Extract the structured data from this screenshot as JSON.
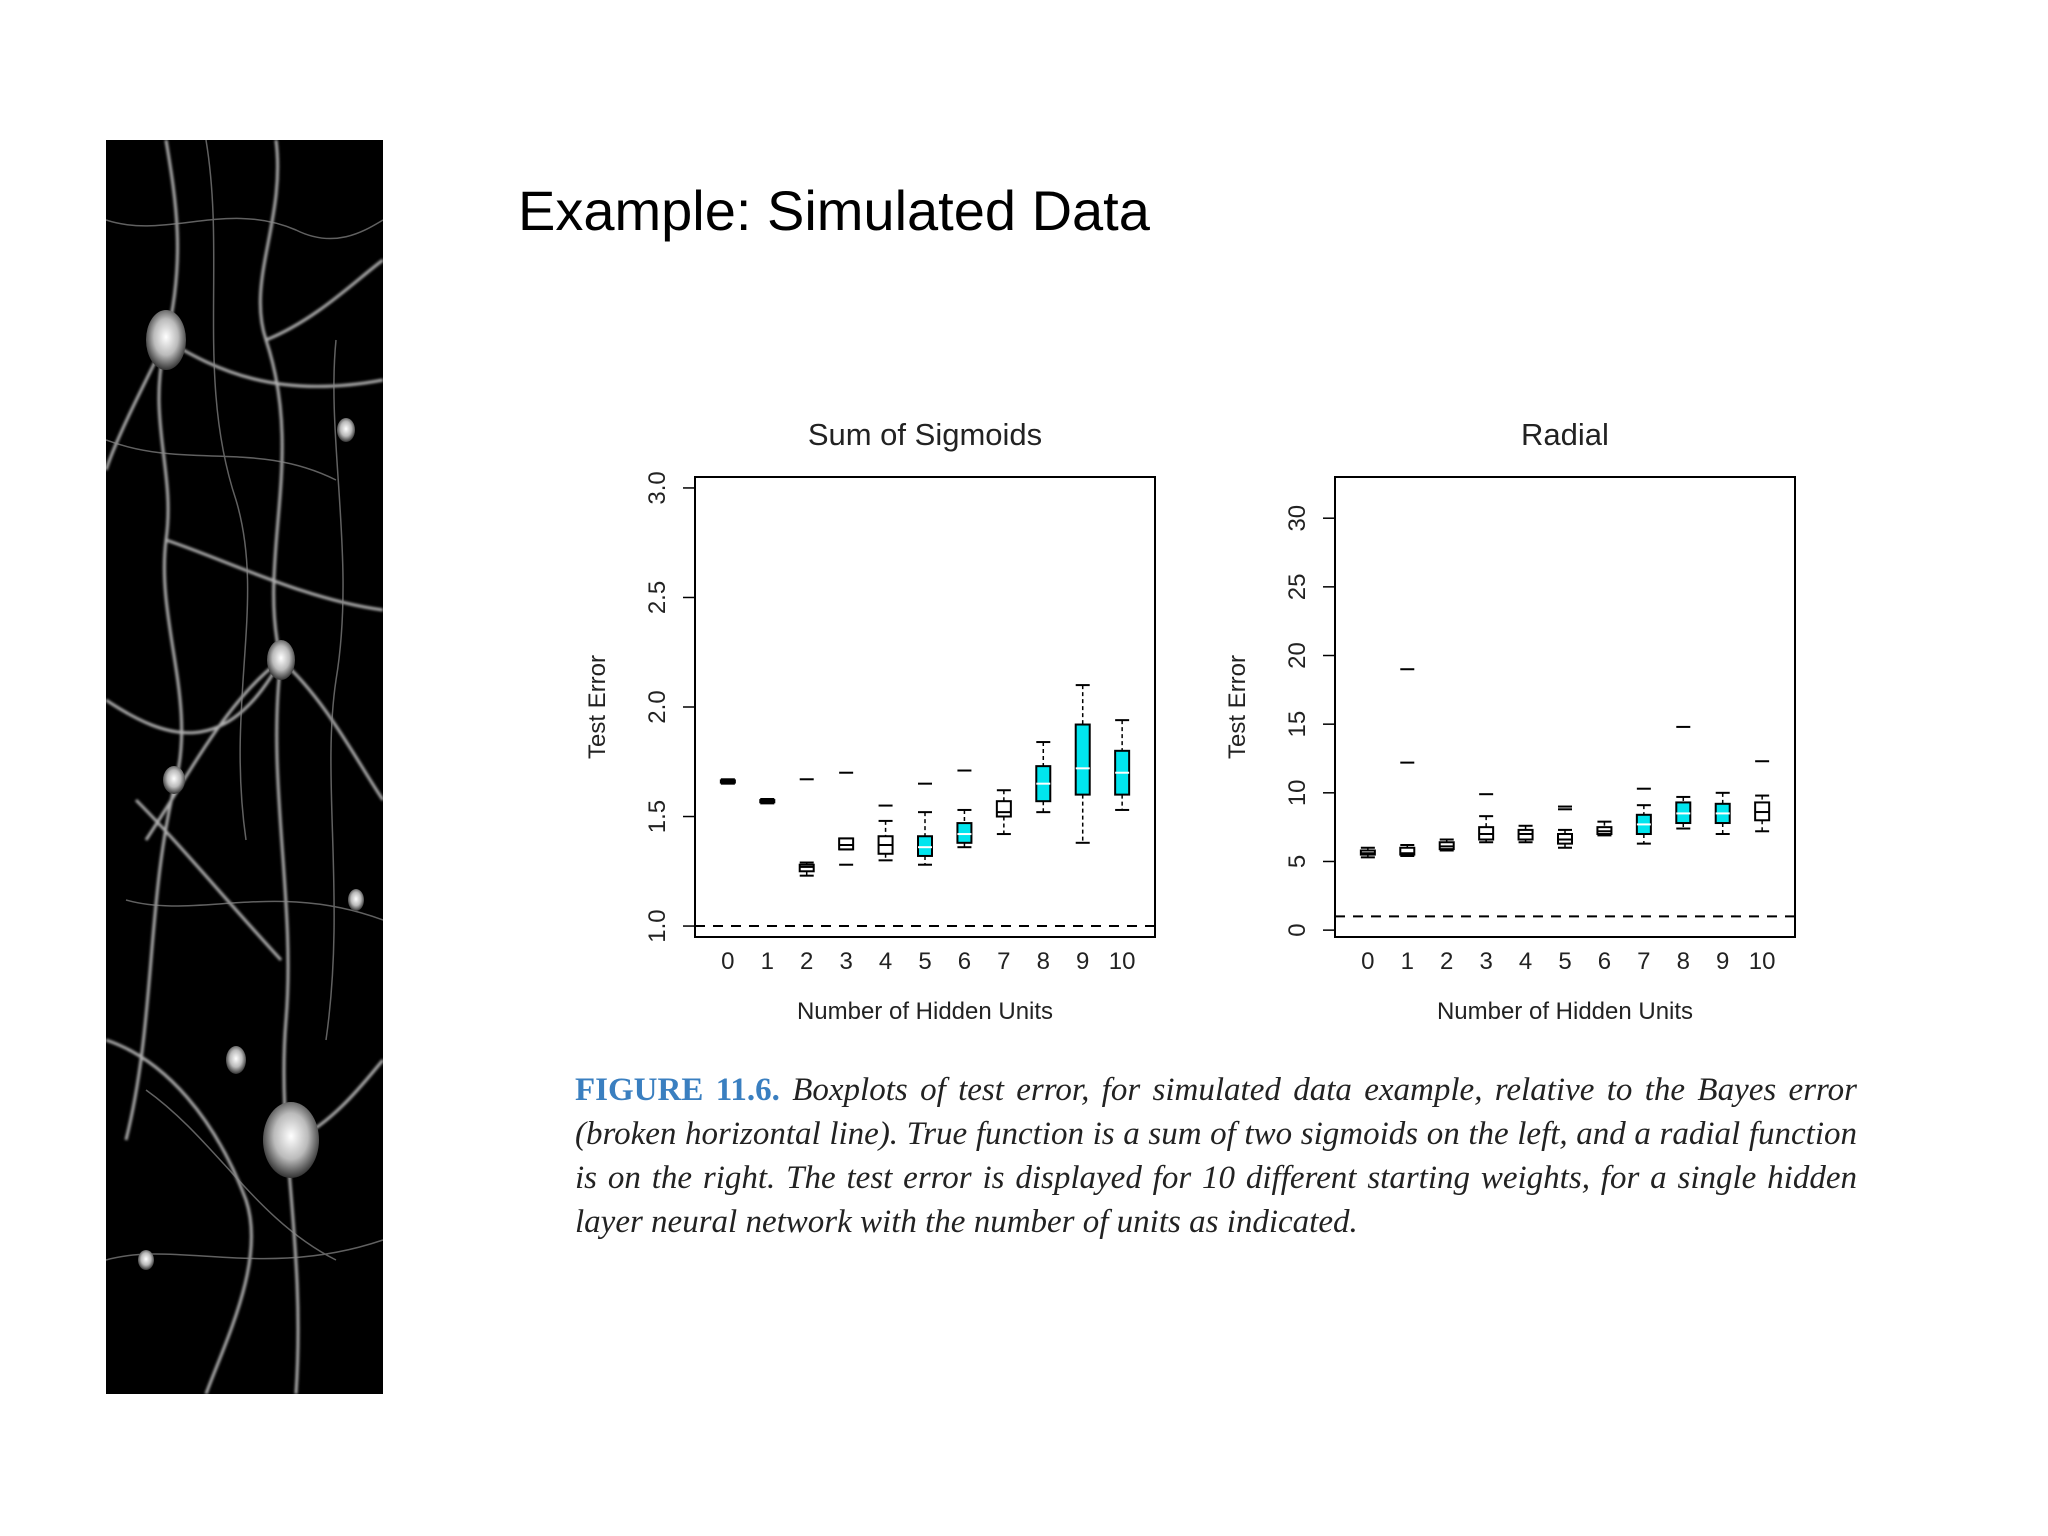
{
  "slide": {
    "title": "Example: Simulated Data"
  },
  "caption": {
    "label": "FIGURE 11.6.",
    "text": "Boxplots of test error, for simulated data example, relative to the Bayes error (broken horizontal line). True function is a sum of two sigmoids on the left, and a radial function is on the right. The test error is displayed for 10 different starting weights, for a single hidden layer neural network with the number of units as indicated."
  },
  "colors": {
    "box_fill": "#00e5ee",
    "box_fill_zero": "#ffffff",
    "neuron_bg": "#000000",
    "caption_label": "#3a7fc0"
  },
  "chart_data": [
    {
      "type": "boxplot",
      "title": "Sum of Sigmoids",
      "xlabel": "Number of Hidden Units",
      "ylabel": "Test Error",
      "categories": [
        "0",
        "1",
        "2",
        "3",
        "4",
        "5",
        "6",
        "7",
        "8",
        "9",
        "10"
      ],
      "ylim": [
        0.95,
        3.05
      ],
      "yticks": [
        "1.0",
        "1.5",
        "2.0",
        "2.5",
        "3.0"
      ],
      "yticks_values": [
        1.0,
        1.5,
        2.0,
        2.5,
        3.0
      ],
      "bayes_error": 1.0,
      "boxes": [
        {
          "whisker_low": 1.65,
          "q1": 1.655,
          "median": 1.66,
          "q3": 1.665,
          "whisker_high": 1.67,
          "outliers": []
        },
        {
          "whisker_low": 1.56,
          "q1": 1.565,
          "median": 1.57,
          "q3": 1.575,
          "whisker_high": 1.58,
          "outliers": []
        },
        {
          "whisker_low": 1.23,
          "q1": 1.25,
          "median": 1.27,
          "q3": 1.28,
          "whisker_high": 1.29,
          "outliers": [
            1.67
          ]
        },
        {
          "whisker_low": 1.35,
          "q1": 1.35,
          "median": 1.37,
          "q3": 1.4,
          "whisker_high": 1.4,
          "outliers": [
            1.28,
            1.7
          ]
        },
        {
          "whisker_low": 1.3,
          "q1": 1.33,
          "median": 1.37,
          "q3": 1.41,
          "whisker_high": 1.48,
          "outliers": [
            1.55
          ]
        },
        {
          "whisker_low": 1.28,
          "q1": 1.32,
          "median": 1.36,
          "q3": 1.41,
          "whisker_high": 1.52,
          "outliers": [
            1.65
          ]
        },
        {
          "whisker_low": 1.36,
          "q1": 1.38,
          "median": 1.42,
          "q3": 1.47,
          "whisker_high": 1.53,
          "outliers": [
            1.71
          ]
        },
        {
          "whisker_low": 1.42,
          "q1": 1.5,
          "median": 1.52,
          "q3": 1.57,
          "whisker_high": 1.62,
          "outliers": []
        },
        {
          "whisker_low": 1.52,
          "q1": 1.57,
          "median": 1.65,
          "q3": 1.73,
          "whisker_high": 1.84,
          "outliers": []
        },
        {
          "whisker_low": 1.38,
          "q1": 1.6,
          "median": 1.72,
          "q3": 1.92,
          "whisker_high": 2.1,
          "outliers": []
        },
        {
          "whisker_low": 1.53,
          "q1": 1.6,
          "median": 1.7,
          "q3": 1.8,
          "whisker_high": 1.94,
          "outliers": []
        }
      ]
    },
    {
      "type": "boxplot",
      "title": "Radial",
      "xlabel": "Number of Hidden Units",
      "ylabel": "Test Error",
      "categories": [
        "0",
        "1",
        "2",
        "3",
        "4",
        "5",
        "6",
        "7",
        "8",
        "9",
        "10"
      ],
      "ylim": [
        -0.5,
        33
      ],
      "yticks": [
        "0",
        "5",
        "10",
        "15",
        "20",
        "25",
        "30"
      ],
      "yticks_values": [
        0,
        5,
        10,
        15,
        20,
        25,
        30
      ],
      "bayes_error": 1.0,
      "boxes": [
        {
          "whisker_low": 5.3,
          "q1": 5.5,
          "median": 5.6,
          "q3": 5.8,
          "whisker_high": 6.0,
          "outliers": []
        },
        {
          "whisker_low": 5.4,
          "q1": 5.5,
          "median": 5.6,
          "q3": 6.0,
          "whisker_high": 6.2,
          "outliers": [
            12.2,
            19.0
          ]
        },
        {
          "whisker_low": 5.8,
          "q1": 5.9,
          "median": 6.1,
          "q3": 6.4,
          "whisker_high": 6.6,
          "outliers": []
        },
        {
          "whisker_low": 6.4,
          "q1": 6.6,
          "median": 7.0,
          "q3": 7.5,
          "whisker_high": 8.3,
          "outliers": [
            9.9
          ]
        },
        {
          "whisker_low": 6.4,
          "q1": 6.6,
          "median": 7.0,
          "q3": 7.3,
          "whisker_high": 7.6,
          "outliers": []
        },
        {
          "whisker_low": 6.0,
          "q1": 6.3,
          "median": 6.6,
          "q3": 7.0,
          "whisker_high": 7.3,
          "outliers": [
            8.8,
            9.0
          ]
        },
        {
          "whisker_low": 6.9,
          "q1": 7.0,
          "median": 7.2,
          "q3": 7.5,
          "whisker_high": 7.9,
          "outliers": []
        },
        {
          "whisker_low": 6.3,
          "q1": 7.0,
          "median": 7.7,
          "q3": 8.4,
          "whisker_high": 9.1,
          "outliers": [
            10.3
          ]
        },
        {
          "whisker_low": 7.4,
          "q1": 7.8,
          "median": 8.5,
          "q3": 9.3,
          "whisker_high": 9.7,
          "outliers": [
            14.8
          ]
        },
        {
          "whisker_low": 7.0,
          "q1": 7.8,
          "median": 8.5,
          "q3": 9.2,
          "whisker_high": 10.0,
          "outliers": []
        },
        {
          "whisker_low": 7.2,
          "q1": 8.0,
          "median": 8.6,
          "q3": 9.3,
          "whisker_high": 9.8,
          "outliers": [
            12.3
          ]
        }
      ]
    }
  ]
}
